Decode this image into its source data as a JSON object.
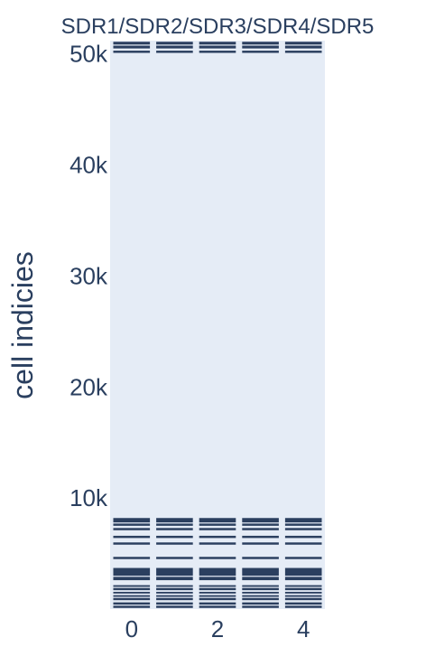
{
  "chart_data": {
    "type": "heatmap",
    "title": "SDR1/SDR2/SDR3/SDR4/SDR5",
    "ylabel": "cell indicies",
    "xlabel": "",
    "x_ticks": [
      {
        "value": 0,
        "label": "0"
      },
      {
        "value": 2,
        "label": "2"
      },
      {
        "value": 4,
        "label": "4"
      }
    ],
    "y_ticks": [
      {
        "value": 10000,
        "label": "10k"
      },
      {
        "value": 20000,
        "label": "20k"
      },
      {
        "value": 30000,
        "label": "30k"
      },
      {
        "value": 40000,
        "label": "40k"
      },
      {
        "value": 50000,
        "label": "50k"
      }
    ],
    "xlim": [
      -0.5,
      4.5
    ],
    "ylim": [
      0,
      51200
    ],
    "columns": [
      0,
      1,
      2,
      3,
      4
    ],
    "active_cell_index_ranges": [
      [
        100,
        300
      ],
      [
        400,
        600
      ],
      [
        800,
        1000
      ],
      [
        1100,
        1250
      ],
      [
        1400,
        1550
      ],
      [
        1700,
        1900
      ],
      [
        2000,
        2150
      ],
      [
        2600,
        2900
      ],
      [
        3000,
        3700
      ],
      [
        4500,
        4700
      ],
      [
        5800,
        6000
      ],
      [
        6400,
        6600
      ],
      [
        7100,
        7300
      ],
      [
        7500,
        7700
      ],
      [
        7800,
        8200
      ],
      [
        50100,
        50300
      ],
      [
        50500,
        50750
      ],
      [
        50850,
        51100
      ]
    ],
    "colors": {
      "active": "#2b3f5f",
      "background": "#e5ecf6",
      "text": "#2a3f5f"
    },
    "grid": false
  }
}
